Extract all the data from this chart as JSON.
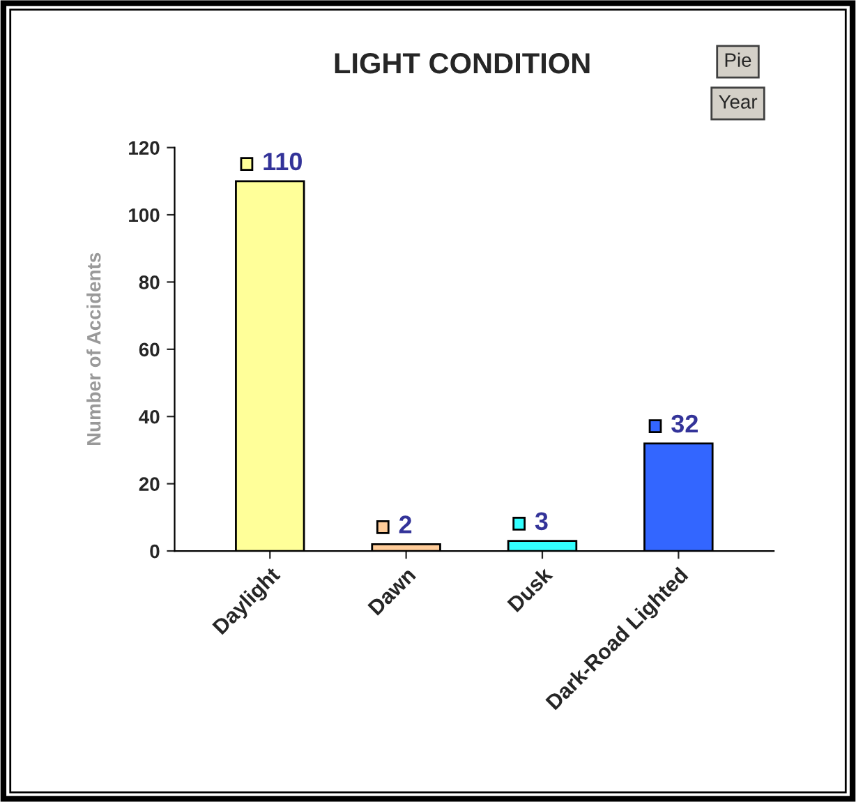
{
  "chart_data": {
    "type": "bar",
    "title": "LIGHT CONDITION",
    "ylabel": "Number of Accidents",
    "categories": [
      "Daylight",
      "Dawn",
      "Dusk",
      "Dark-Road Lighted"
    ],
    "values": [
      110,
      2,
      3,
      32
    ],
    "colors": [
      "#ffff99",
      "#ffcc99",
      "#33ffff",
      "#3366ff"
    ],
    "ylim": [
      0,
      120
    ],
    "yticks": [
      0,
      20,
      40,
      60,
      80,
      100,
      120
    ],
    "data_labels": true,
    "grid": false,
    "legend": false,
    "annotations": [
      "Pie",
      "Year"
    ]
  }
}
